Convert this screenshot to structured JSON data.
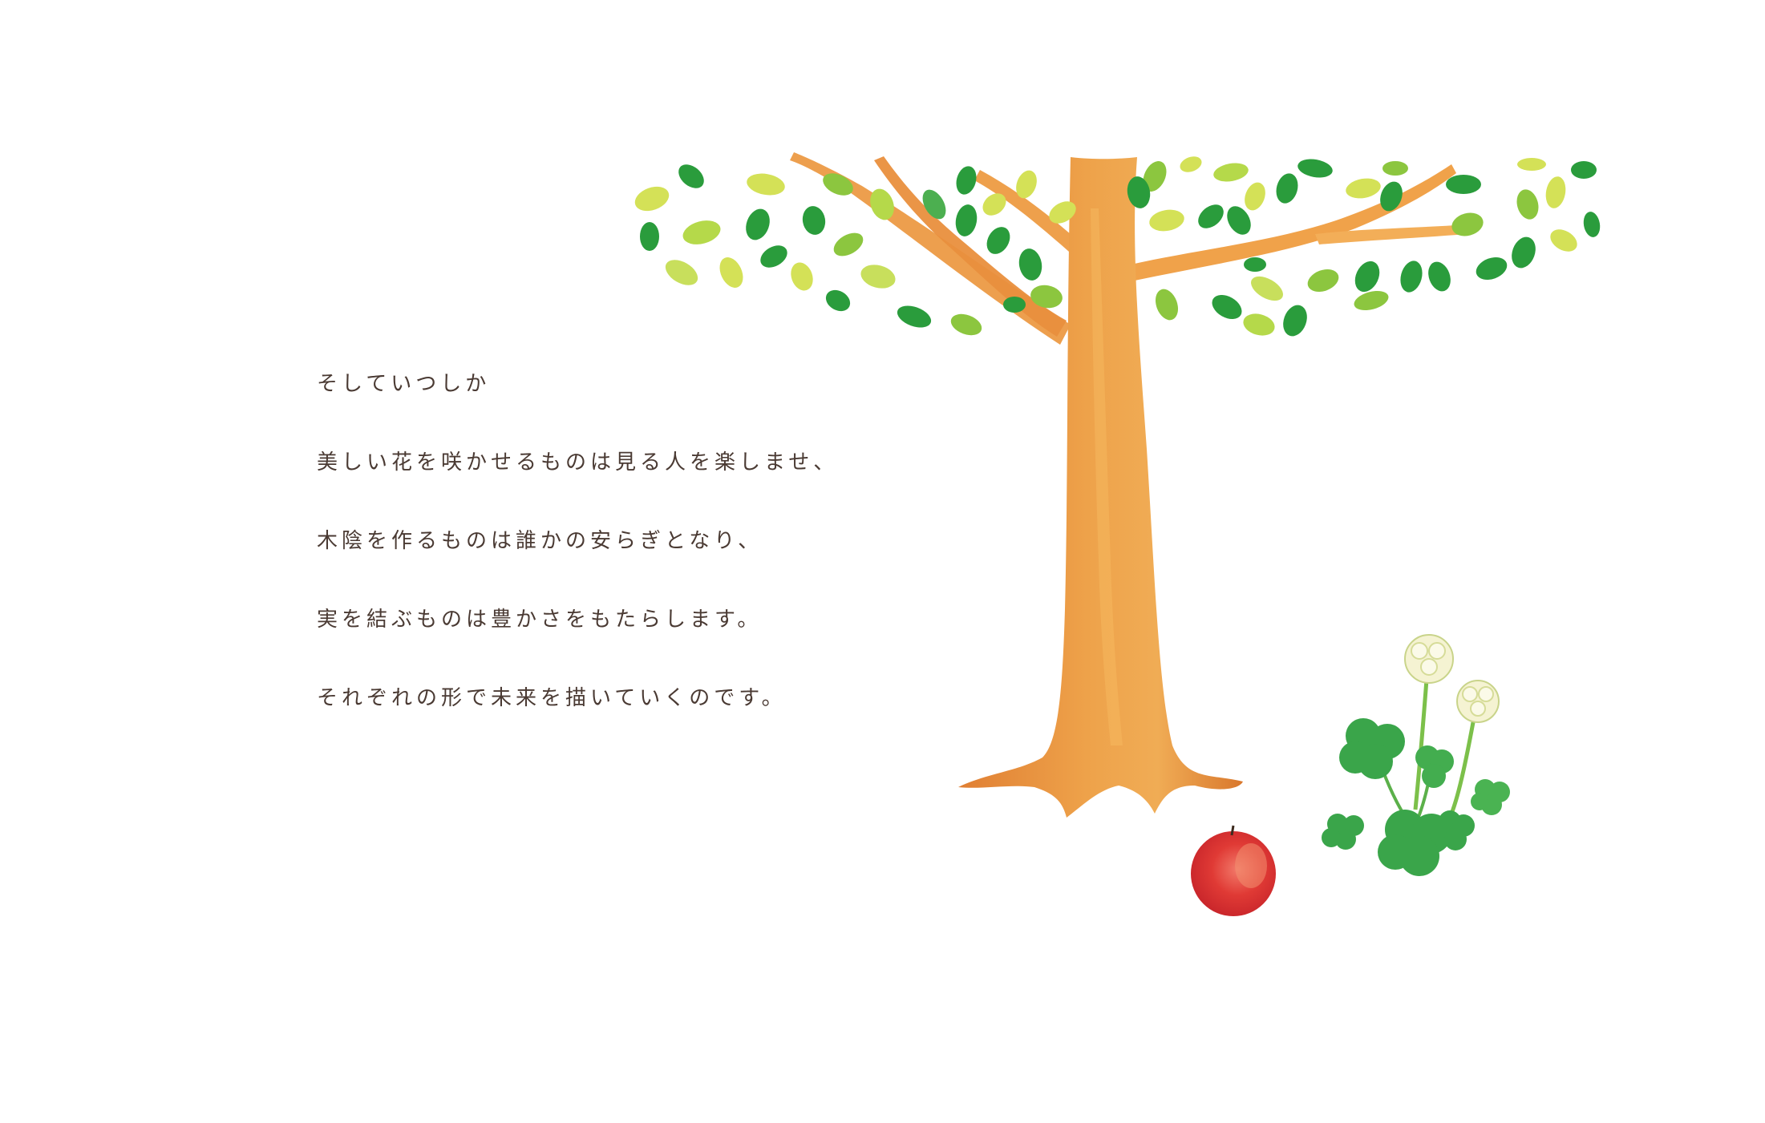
{
  "poem": {
    "lines": [
      "そしていつしか",
      "美しい花を咲かせるものは見る人を楽しませ、",
      "木陰を作るものは誰かの安らぎとなり、",
      "実を結ぶものは豊かさをもたらします。",
      "それぞれの形で未来を描いていくのです。"
    ]
  },
  "illustration": {
    "subjects": [
      "tree",
      "leaves",
      "apple",
      "clover",
      "clover-flower"
    ],
    "colors": {
      "trunk": "#e8923f",
      "trunk_dark": "#d17a2e",
      "leaf_dark": "#2a9c3c",
      "leaf_mid": "#8cc63f",
      "leaf_light": "#d4e157",
      "apple": "#d9302f",
      "clover": "#3aa54a",
      "flower": "#f7f5d8",
      "text": "#4a3a33"
    }
  }
}
